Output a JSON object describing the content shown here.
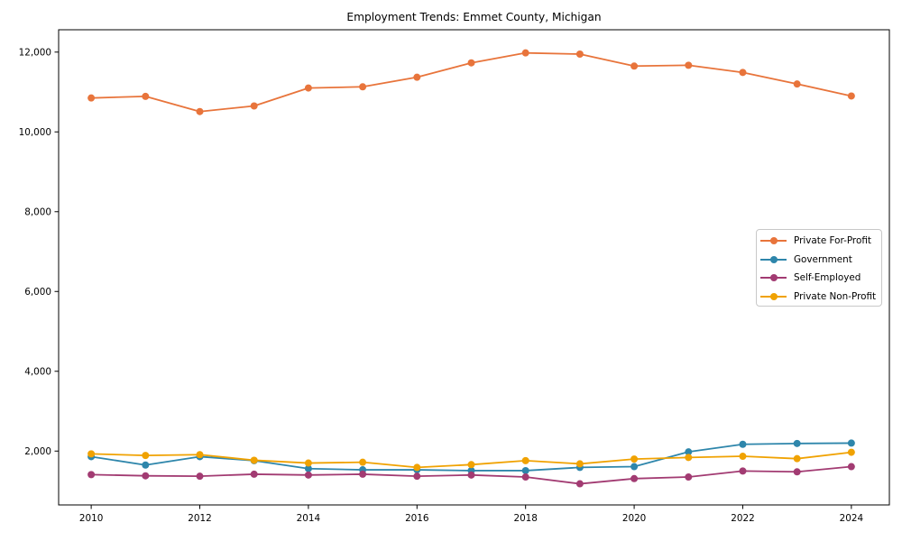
{
  "page": {
    "background_color": "#ffffff",
    "text_color": "#000000"
  },
  "chart_data": {
    "type": "line",
    "title": "Employment Trends: Emmet County, Michigan",
    "xlabel": "",
    "ylabel": "",
    "grid": false,
    "legend_position": "center-right",
    "xlim": [
      2009.4,
      2024.7
    ],
    "ylim": [
      650,
      12560
    ],
    "x": [
      2010,
      2011,
      2012,
      2013,
      2014,
      2015,
      2016,
      2017,
      2018,
      2019,
      2020,
      2021,
      2022,
      2023,
      2024
    ],
    "xtick_values": [
      2010,
      2012,
      2014,
      2016,
      2018,
      2020,
      2022,
      2024
    ],
    "xtick_labels": [
      "2010",
      "2012",
      "2014",
      "2016",
      "2018",
      "2020",
      "2022",
      "2024"
    ],
    "ytick_values": [
      2000,
      4000,
      6000,
      8000,
      10000,
      12000
    ],
    "ytick_labels": [
      "2,000",
      "4,000",
      "6,000",
      "8,000",
      "10,000",
      "12,000"
    ],
    "series": [
      {
        "name": "Private For-Profit",
        "color": "#E8743B",
        "marker": "circle",
        "values": [
          10850,
          10890,
          10510,
          10650,
          11100,
          11130,
          11370,
          11730,
          11980,
          11950,
          11650,
          11670,
          11490,
          11200,
          10900
        ]
      },
      {
        "name": "Government",
        "color": "#2E86AB",
        "marker": "circle",
        "values": [
          1860,
          1650,
          1860,
          1760,
          1560,
          1530,
          1530,
          1510,
          1510,
          1590,
          1610,
          1980,
          2170,
          2190,
          2200
        ]
      },
      {
        "name": "Self-Employed",
        "color": "#A23B72",
        "marker": "circle",
        "values": [
          1410,
          1380,
          1370,
          1420,
          1400,
          1420,
          1370,
          1400,
          1350,
          1180,
          1310,
          1350,
          1500,
          1480,
          1610
        ]
      },
      {
        "name": "Private Non-Profit",
        "color": "#F0A202",
        "marker": "circle",
        "values": [
          1930,
          1890,
          1910,
          1770,
          1700,
          1720,
          1590,
          1660,
          1760,
          1680,
          1800,
          1840,
          1870,
          1810,
          1970
        ]
      }
    ]
  }
}
